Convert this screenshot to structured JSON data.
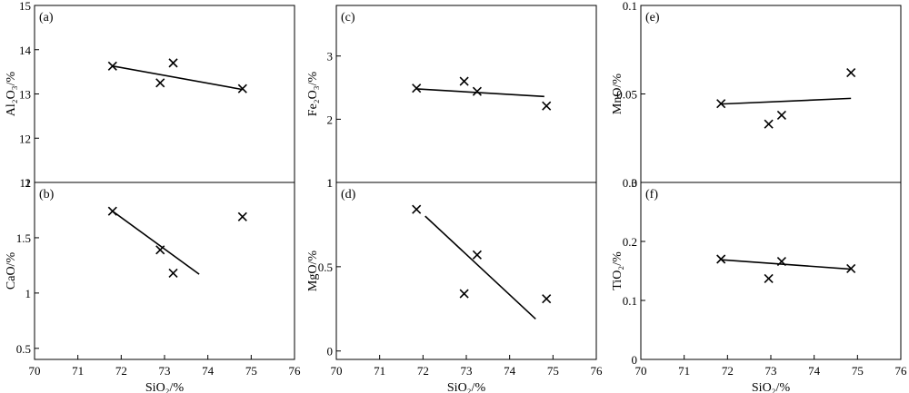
{
  "chart_data": [
    {
      "type": "scatter",
      "panel_label": "(a)",
      "ylabel": "Al₂O₃/%",
      "xlabel": "",
      "xlim": [
        70,
        76
      ],
      "ylim": [
        11,
        15
      ],
      "x_ticks": [],
      "y_ticks": [
        "11",
        "12",
        "13",
        "14",
        "15"
      ],
      "points": [
        {
          "x": 71.8,
          "y": 13.63
        },
        {
          "x": 72.9,
          "y": 13.25
        },
        {
          "x": 73.2,
          "y": 13.7
        },
        {
          "x": 74.8,
          "y": 13.12
        }
      ],
      "trend_line": {
        "x": [
          71.8,
          74.8
        ],
        "y": [
          13.63,
          13.1
        ]
      }
    },
    {
      "type": "scatter",
      "panel_label": "(b)",
      "ylabel": "CaO/%",
      "xlabel": "SiO₂/%",
      "xlim": [
        70,
        76
      ],
      "ylim": [
        0.4,
        2
      ],
      "x_ticks": [
        "70",
        "71",
        "72",
        "73",
        "74",
        "75",
        "76"
      ],
      "y_ticks": [
        "0.5",
        "1",
        "1.5",
        "2"
      ],
      "points": [
        {
          "x": 71.8,
          "y": 1.74
        },
        {
          "x": 72.9,
          "y": 1.39
        },
        {
          "x": 73.2,
          "y": 1.18
        },
        {
          "x": 74.8,
          "y": 1.69
        }
      ],
      "trend_line": {
        "x": [
          71.8,
          73.8
        ],
        "y": [
          1.74,
          1.17
        ]
      }
    },
    {
      "type": "scatter",
      "panel_label": "(c)",
      "ylabel": "Fe₂O₃/%",
      "xlabel": "",
      "xlim": [
        70,
        76
      ],
      "ylim": [
        1,
        3.8
      ],
      "x_ticks": [],
      "y_ticks": [
        "1",
        "2",
        "3"
      ],
      "points": [
        {
          "x": 71.85,
          "y": 2.49
        },
        {
          "x": 72.95,
          "y": 2.6
        },
        {
          "x": 73.25,
          "y": 2.44
        },
        {
          "x": 74.85,
          "y": 2.21
        }
      ],
      "trend_line": {
        "x": [
          71.85,
          74.8
        ],
        "y": [
          2.48,
          2.36
        ]
      }
    },
    {
      "type": "scatter",
      "panel_label": "(d)",
      "ylabel": "MgO/%",
      "xlabel": "SiO₂/%",
      "xlim": [
        70,
        76
      ],
      "ylim": [
        -0.05,
        1
      ],
      "x_ticks": [
        "70",
        "71",
        "72",
        "73",
        "74",
        "75",
        "76"
      ],
      "y_ticks": [
        "0",
        "0.5",
        "1"
      ],
      "points": [
        {
          "x": 71.85,
          "y": 0.84
        },
        {
          "x": 72.95,
          "y": 0.34
        },
        {
          "x": 73.25,
          "y": 0.57
        },
        {
          "x": 74.85,
          "y": 0.31
        }
      ],
      "trend_line": {
        "x": [
          72.05,
          74.6
        ],
        "y": [
          0.8,
          0.19
        ]
      }
    },
    {
      "type": "scatter",
      "panel_label": "(e)",
      "ylabel": "MnO/%",
      "xlabel": "",
      "xlim": [
        70,
        76
      ],
      "ylim": [
        0,
        0.1
      ],
      "x_ticks": [],
      "y_ticks": [
        "0",
        "0.05",
        "0.1"
      ],
      "points": [
        {
          "x": 71.85,
          "y": 0.0445
        },
        {
          "x": 72.95,
          "y": 0.033
        },
        {
          "x": 73.25,
          "y": 0.038
        },
        {
          "x": 74.85,
          "y": 0.062
        }
      ],
      "trend_line": {
        "x": [
          71.85,
          74.85
        ],
        "y": [
          0.0443,
          0.0475
        ]
      }
    },
    {
      "type": "scatter",
      "panel_label": "(f)",
      "ylabel": "TiO₂/%",
      "xlabel": "SiO₂/%",
      "xlim": [
        70,
        76
      ],
      "ylim": [
        0,
        0.3
      ],
      "x_ticks": [
        "70",
        "71",
        "72",
        "73",
        "74",
        "75",
        "76"
      ],
      "y_ticks": [
        "0",
        "0.1",
        "0.2",
        "0.3"
      ],
      "points": [
        {
          "x": 71.85,
          "y": 0.17
        },
        {
          "x": 72.95,
          "y": 0.137
        },
        {
          "x": 73.25,
          "y": 0.166
        },
        {
          "x": 74.85,
          "y": 0.154
        }
      ],
      "trend_line": {
        "x": [
          71.85,
          74.85
        ],
        "y": [
          0.169,
          0.153
        ]
      }
    }
  ]
}
